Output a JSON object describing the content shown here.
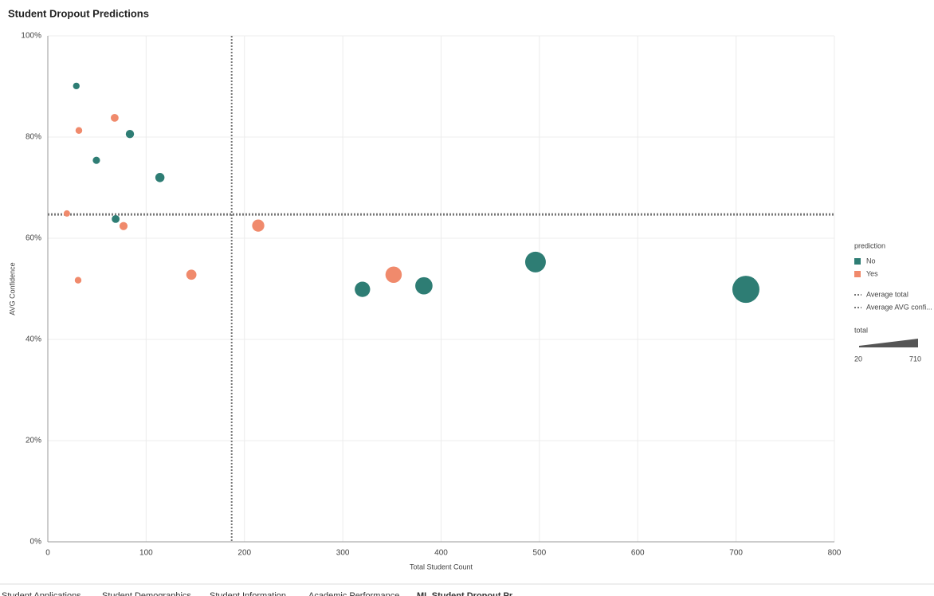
{
  "chart_data": {
    "type": "bubble",
    "title": "Student Dropout Predictions",
    "x_label": "Total Student Count",
    "y_label": "AVG Confidence",
    "xlim": [
      0,
      800
    ],
    "xticks": [
      0,
      100,
      200,
      300,
      400,
      500,
      600,
      700,
      800
    ],
    "ylim": [
      0,
      100
    ],
    "yticks": [
      {
        "value": 0,
        "label": "0%"
      },
      {
        "value": 20,
        "label": "20%"
      },
      {
        "value": 40,
        "label": "40%"
      },
      {
        "value": 60,
        "label": "60%"
      },
      {
        "value": 80,
        "label": "80%"
      },
      {
        "value": 100,
        "label": "100%"
      }
    ],
    "grid": true,
    "legend_title": "prediction",
    "series": [
      {
        "name": "No",
        "color": "#2e7d74",
        "x": [
          29,
          83.5,
          49.4,
          114,
          69,
          320,
          382.5,
          496,
          710
        ],
        "values": [
          90.1,
          80.6,
          75.4,
          72,
          63.8,
          49.9,
          50.6,
          55.3,
          49.9
        ]
      },
      {
        "name": "Yes",
        "color": "#f08a6c",
        "x": [
          68,
          31.6,
          19.4,
          77,
          30.8,
          146,
          214,
          351.7
        ],
        "values": [
          83.8,
          81.3,
          64.9,
          62.4,
          51.7,
          52.8,
          62.5,
          52.8
        ]
      }
    ],
    "reference_lines": [
      {
        "name": "Average total",
        "axis": "x",
        "value": 187
      },
      {
        "name": "Average AVG confi...",
        "axis": "y",
        "value": 64.7
      }
    ],
    "size_legend": {
      "title": "total",
      "min": 20,
      "max": 710
    }
  },
  "tabs": [
    "Student Applications",
    "Student Demographics",
    "Student Information",
    "Academic Performance",
    "ML Student Dropout Pr..."
  ]
}
